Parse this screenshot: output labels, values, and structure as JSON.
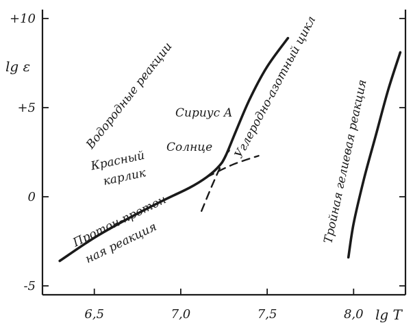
{
  "chart_data": {
    "type": "line",
    "xlabel": "lg T",
    "ylabel": "lg ε",
    "xlim": [
      6.2,
      8.3
    ],
    "ylim": [
      -5.5,
      10.5
    ],
    "x_ticks": [
      6.5,
      7.0,
      7.5,
      8.0
    ],
    "x_tick_labels": [
      "6,5",
      "7,0",
      "7,5",
      "8,0"
    ],
    "y_ticks": [
      10,
      5,
      0,
      -5
    ],
    "y_tick_labels": [
      "+10",
      "+5",
      "0",
      "-5"
    ],
    "series": [
      {
        "key": "hydrogen",
        "style": "solid",
        "points": [
          [
            6.3,
            -3.6
          ],
          [
            6.5,
            -2.3
          ],
          [
            6.7,
            -1.2
          ],
          [
            6.9,
            -0.2
          ],
          [
            7.05,
            0.5
          ],
          [
            7.15,
            1.1
          ],
          [
            7.22,
            1.7
          ],
          [
            7.26,
            2.3
          ],
          [
            7.32,
            3.7
          ],
          [
            7.4,
            5.5
          ],
          [
            7.5,
            7.3
          ],
          [
            7.62,
            8.9
          ]
        ]
      },
      {
        "key": "pp_dashed",
        "style": "dashed",
        "points": [
          [
            7.15,
            1.1
          ],
          [
            7.3,
            1.8
          ],
          [
            7.45,
            2.3
          ]
        ]
      },
      {
        "key": "cno_dashed",
        "style": "dashed",
        "points": [
          [
            7.12,
            -0.8
          ],
          [
            7.18,
            0.6
          ],
          [
            7.24,
            1.9
          ],
          [
            7.28,
            2.6
          ]
        ]
      },
      {
        "key": "triple_alpha",
        "style": "solid",
        "points": [
          [
            7.97,
            -3.4
          ],
          [
            8.0,
            -1.5
          ],
          [
            8.06,
            1.0
          ],
          [
            8.13,
            3.5
          ],
          [
            8.2,
            6.0
          ],
          [
            8.27,
            8.1
          ]
        ]
      }
    ],
    "annotations": {
      "hydrogen_reactions": "Водородные реакции",
      "sirius": "Сириус А",
      "sun": "Солнце",
      "cno_cycle": "Углеродно-азотный цикл",
      "red_dwarf_1": "Красный",
      "red_dwarf_2": "карлик",
      "pp_1": "Протон-протон-",
      "pp_2": "ная реакция",
      "triple_alpha": "Тройная гелиевая реакция"
    },
    "grid": false
  }
}
